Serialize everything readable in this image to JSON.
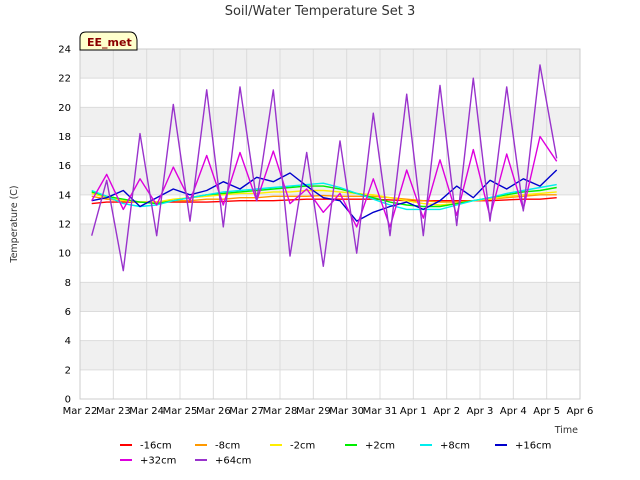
{
  "chart_data": {
    "type": "line",
    "title": "Soil/Water Temperature Set 3",
    "xlabel": "Time",
    "ylabel": "Temperature (C)",
    "annotation": "EE_met",
    "ylim": [
      0,
      24
    ],
    "yticks": [
      0,
      2,
      4,
      6,
      8,
      10,
      12,
      14,
      16,
      18,
      20,
      22,
      24
    ],
    "xlim": [
      0,
      15
    ],
    "xticks": [
      0,
      1,
      2,
      3,
      4,
      5,
      6,
      7,
      8,
      9,
      10,
      11,
      12,
      13,
      14,
      15
    ],
    "xtick_labels": [
      "Mar 22",
      "Mar 23",
      "Mar 24",
      "Mar 25",
      "Mar 26",
      "Mar 27",
      "Mar 28",
      "Mar 29",
      "Mar 30",
      "Mar 31",
      "Apr 1",
      "Apr 2",
      "Apr 3",
      "Apr 4",
      "Apr 5",
      "Apr 6"
    ],
    "grid": true,
    "legend_position": "bottom",
    "x": [
      0.35,
      0.8,
      1.3,
      1.8,
      2.3,
      2.8,
      3.3,
      3.8,
      4.3,
      4.8,
      5.3,
      5.8,
      6.3,
      6.8,
      7.3,
      7.8,
      8.3,
      8.8,
      9.3,
      9.8,
      10.3,
      10.8,
      11.3,
      11.8,
      12.3,
      12.8,
      13.3,
      13.8,
      14.3
    ],
    "series": [
      {
        "name": "-16cm",
        "color": "#ff0000",
        "values": [
          13.4,
          13.5,
          13.5,
          13.5,
          13.5,
          13.5,
          13.5,
          13.5,
          13.55,
          13.6,
          13.6,
          13.6,
          13.65,
          13.7,
          13.7,
          13.7,
          13.7,
          13.7,
          13.65,
          13.6,
          13.6,
          13.6,
          13.6,
          13.6,
          13.6,
          13.65,
          13.7,
          13.7,
          13.8
        ]
      },
      {
        "name": "-8cm",
        "color": "#ff9900",
        "values": [
          13.9,
          13.7,
          13.6,
          13.5,
          13.5,
          13.6,
          13.6,
          13.7,
          13.7,
          13.8,
          13.8,
          13.9,
          13.9,
          13.9,
          13.95,
          13.9,
          13.9,
          13.9,
          13.8,
          13.7,
          13.6,
          13.5,
          13.5,
          13.6,
          13.7,
          13.8,
          13.9,
          14.0,
          14.0
        ]
      },
      {
        "name": "-2cm",
        "color": "#ffee00",
        "values": [
          14.1,
          13.8,
          13.6,
          13.5,
          13.5,
          13.7,
          13.8,
          13.9,
          14.0,
          14.1,
          14.1,
          14.2,
          14.2,
          14.3,
          14.3,
          14.2,
          14.1,
          14.0,
          13.8,
          13.6,
          13.4,
          13.3,
          13.4,
          13.6,
          13.7,
          13.9,
          14.0,
          14.1,
          14.2
        ]
      },
      {
        "name": "+2cm",
        "color": "#00ee00",
        "values": [
          14.2,
          13.9,
          13.7,
          13.5,
          13.4,
          13.6,
          13.8,
          14.0,
          14.1,
          14.2,
          14.3,
          14.4,
          14.5,
          14.6,
          14.6,
          14.4,
          14.1,
          13.8,
          13.5,
          13.3,
          13.2,
          13.2,
          13.4,
          13.6,
          13.8,
          14.0,
          14.2,
          14.3,
          14.5
        ]
      },
      {
        "name": "+8cm",
        "color": "#00eeee",
        "values": [
          14.3,
          13.9,
          13.4,
          13.2,
          13.3,
          13.6,
          13.8,
          14.0,
          14.2,
          14.3,
          14.4,
          14.5,
          14.6,
          14.7,
          14.8,
          14.5,
          14.1,
          13.7,
          13.3,
          13.0,
          13.0,
          13.0,
          13.3,
          13.6,
          13.8,
          14.1,
          14.3,
          14.5,
          14.7
        ]
      },
      {
        "name": "+16cm",
        "color": "#0000cc",
        "values": [
          13.6,
          13.8,
          14.3,
          13.2,
          13.8,
          14.4,
          14.0,
          14.3,
          14.9,
          14.4,
          15.2,
          14.9,
          15.5,
          14.6,
          13.8,
          13.6,
          12.2,
          12.8,
          13.2,
          13.5,
          13.0,
          13.6,
          14.6,
          13.8,
          15.0,
          14.4,
          15.1,
          14.6,
          15.7
        ]
      },
      {
        "name": "+32cm",
        "color": "#dd00dd",
        "values": [
          13.6,
          15.4,
          13.0,
          15.1,
          13.3,
          15.9,
          13.6,
          16.7,
          13.3,
          16.9,
          13.6,
          17.0,
          13.4,
          14.4,
          12.8,
          14.1,
          11.8,
          15.1,
          11.8,
          15.7,
          12.4,
          16.4,
          12.6,
          17.1,
          12.5,
          16.8,
          13.0,
          18.0,
          16.3
        ]
      },
      {
        "name": "+64cm",
        "color": "#9933cc",
        "values": [
          11.2,
          15.0,
          8.8,
          18.2,
          11.2,
          20.2,
          12.2,
          21.2,
          11.8,
          21.4,
          13.6,
          21.2,
          9.8,
          16.9,
          9.1,
          17.7,
          10.0,
          19.6,
          11.2,
          20.9,
          11.2,
          21.5,
          11.9,
          22.0,
          12.2,
          21.4,
          12.9,
          22.9,
          16.5
        ]
      }
    ]
  }
}
